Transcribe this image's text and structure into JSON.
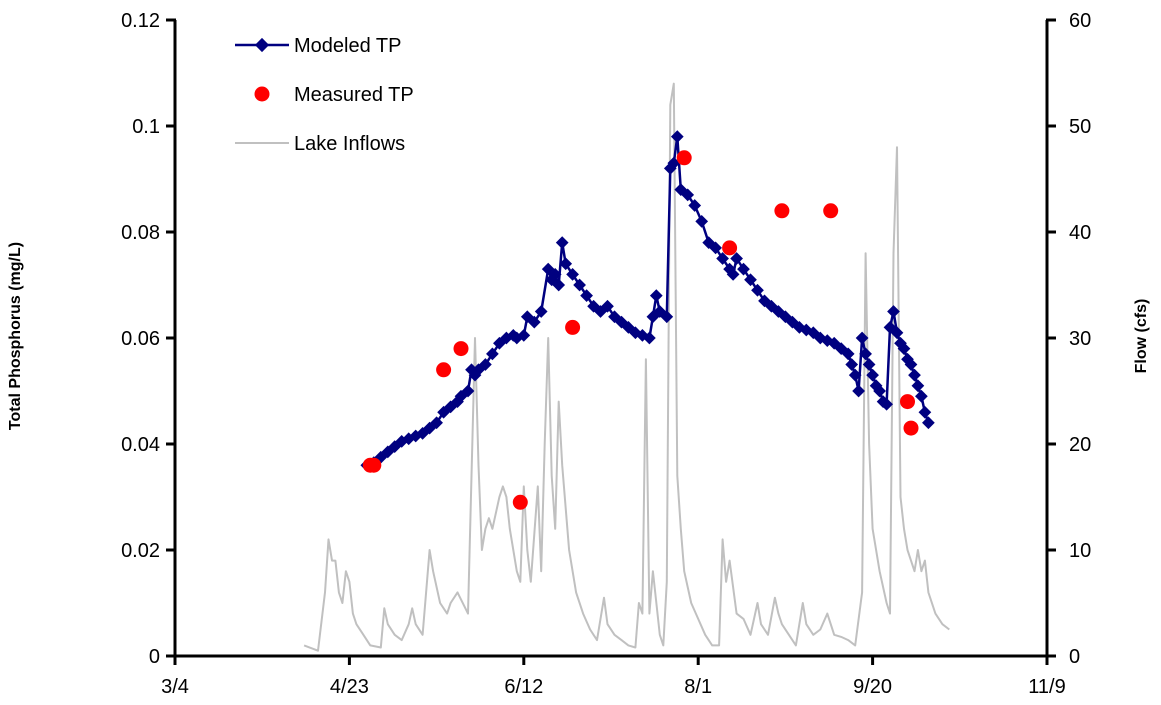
{
  "chart_data": {
    "type": "line",
    "title": "",
    "xlabel": "",
    "ylabel_left": "Total Phosphorus (mg/L)",
    "ylabel_right": "Flow (cfs)",
    "x_ticks": [
      "3/4",
      "4/23",
      "6/12",
      "8/1",
      "9/20",
      "11/9"
    ],
    "y_left_ticks": [
      "0",
      "0.02",
      "0.04",
      "0.06",
      "0.08",
      "0.1",
      "0.12"
    ],
    "y_right_ticks": [
      "0",
      "10",
      "20",
      "30",
      "40",
      "50",
      "60"
    ],
    "x_range": [
      "3/4",
      "11/9"
    ],
    "y_left_range": [
      0,
      0.12
    ],
    "y_right_range": [
      0,
      60
    ],
    "grid": false,
    "legend_position": "top-left",
    "colors": {
      "modeled": "#000080",
      "measured": "#ff0000",
      "inflows": "#c0c0c0"
    },
    "series": [
      {
        "name": "Modeled TP",
        "axis": "left",
        "style": "line-diamond",
        "points": [
          [
            "4/28",
            0.036
          ],
          [
            "4/30",
            0.0365
          ],
          [
            "5/2",
            0.0375
          ],
          [
            "5/4",
            0.0385
          ],
          [
            "5/6",
            0.0395
          ],
          [
            "5/8",
            0.0405
          ],
          [
            "5/10",
            0.041
          ],
          [
            "5/12",
            0.0415
          ],
          [
            "5/14",
            0.042
          ],
          [
            "5/16",
            0.043
          ],
          [
            "5/18",
            0.044
          ],
          [
            "5/20",
            0.046
          ],
          [
            "5/22",
            0.047
          ],
          [
            "5/24",
            0.048
          ],
          [
            "5/25",
            0.049
          ],
          [
            "5/27",
            0.05
          ],
          [
            "5/28",
            0.054
          ],
          [
            "5/29",
            0.053
          ],
          [
            "5/30",
            0.054
          ],
          [
            "6/1",
            0.055
          ],
          [
            "6/3",
            0.057
          ],
          [
            "6/5",
            0.059
          ],
          [
            "6/7",
            0.06
          ],
          [
            "6/9",
            0.0605
          ],
          [
            "6/10",
            0.06
          ],
          [
            "6/12",
            0.0605
          ],
          [
            "6/13",
            0.064
          ],
          [
            "6/15",
            0.063
          ],
          [
            "6/17",
            0.065
          ],
          [
            "6/19",
            0.073
          ],
          [
            "6/20",
            0.071
          ],
          [
            "6/21",
            0.072
          ],
          [
            "6/22",
            0.07
          ],
          [
            "6/23",
            0.078
          ],
          [
            "6/24",
            0.074
          ],
          [
            "6/26",
            0.072
          ],
          [
            "6/28",
            0.07
          ],
          [
            "6/30",
            0.068
          ],
          [
            "7/2",
            0.066
          ],
          [
            "7/4",
            0.065
          ],
          [
            "7/6",
            0.066
          ],
          [
            "7/8",
            0.064
          ],
          [
            "7/10",
            0.063
          ],
          [
            "7/12",
            0.062
          ],
          [
            "7/14",
            0.061
          ],
          [
            "7/16",
            0.0605
          ],
          [
            "7/18",
            0.06
          ],
          [
            "7/19",
            0.064
          ],
          [
            "7/20",
            0.068
          ],
          [
            "7/21",
            0.065
          ],
          [
            "7/23",
            0.064
          ],
          [
            "7/24",
            0.092
          ],
          [
            "7/25",
            0.093
          ],
          [
            "7/26",
            0.098
          ],
          [
            "7/27",
            0.088
          ],
          [
            "7/29",
            0.087
          ],
          [
            "7/31",
            0.085
          ],
          [
            "8/2",
            0.082
          ],
          [
            "8/4",
            0.078
          ],
          [
            "8/6",
            0.077
          ],
          [
            "8/8",
            0.075
          ],
          [
            "8/10",
            0.073
          ],
          [
            "8/11",
            0.072
          ],
          [
            "8/12",
            0.075
          ],
          [
            "8/14",
            0.073
          ],
          [
            "8/16",
            0.071
          ],
          [
            "8/18",
            0.069
          ],
          [
            "8/20",
            0.067
          ],
          [
            "8/22",
            0.066
          ],
          [
            "8/24",
            0.065
          ],
          [
            "8/26",
            0.064
          ],
          [
            "8/28",
            0.063
          ],
          [
            "8/30",
            0.062
          ],
          [
            "9/1",
            0.0615
          ],
          [
            "9/3",
            0.061
          ],
          [
            "9/5",
            0.06
          ],
          [
            "9/7",
            0.0595
          ],
          [
            "9/9",
            0.059
          ],
          [
            "9/11",
            0.058
          ],
          [
            "9/13",
            0.057
          ],
          [
            "9/14",
            0.055
          ],
          [
            "9/15",
            0.053
          ],
          [
            "9/16",
            0.05
          ],
          [
            "9/17",
            0.06
          ],
          [
            "9/18",
            0.057
          ],
          [
            "9/19",
            0.055
          ],
          [
            "9/20",
            0.053
          ],
          [
            "9/21",
            0.051
          ],
          [
            "9/22",
            0.05
          ],
          [
            "9/23",
            0.048
          ],
          [
            "9/24",
            0.0475
          ],
          [
            "9/25",
            0.062
          ],
          [
            "9/26",
            0.065
          ],
          [
            "9/27",
            0.061
          ],
          [
            "9/28",
            0.059
          ],
          [
            "9/29",
            0.058
          ],
          [
            "9/30",
            0.056
          ],
          [
            "10/1",
            0.055
          ],
          [
            "10/2",
            0.053
          ],
          [
            "10/3",
            0.051
          ],
          [
            "10/4",
            0.049
          ],
          [
            "10/5",
            0.046
          ],
          [
            "10/6",
            0.044
          ]
        ]
      },
      {
        "name": "Measured TP",
        "axis": "left",
        "style": "marker-circle",
        "points": [
          [
            "4/29",
            0.036
          ],
          [
            "4/30",
            0.036
          ],
          [
            "5/20",
            0.054
          ],
          [
            "5/25",
            0.058
          ],
          [
            "6/11",
            0.029
          ],
          [
            "6/26",
            0.062
          ],
          [
            "7/28",
            0.094
          ],
          [
            "8/10",
            0.077
          ],
          [
            "8/25",
            0.084
          ],
          [
            "9/8",
            0.084
          ],
          [
            "9/30",
            0.048
          ],
          [
            "10/1",
            0.043
          ]
        ]
      },
      {
        "name": "Lake Inflows",
        "axis": "right",
        "style": "line",
        "points": [
          [
            "4/10",
            1
          ],
          [
            "4/14",
            0.5
          ],
          [
            "4/16",
            6
          ],
          [
            "4/17",
            11
          ],
          [
            "4/18",
            9
          ],
          [
            "4/19",
            9
          ],
          [
            "4/20",
            6
          ],
          [
            "4/21",
            5
          ],
          [
            "4/22",
            8
          ],
          [
            "4/23",
            7
          ],
          [
            "4/24",
            4
          ],
          [
            "4/25",
            3
          ],
          [
            "4/27",
            2
          ],
          [
            "4/29",
            1
          ],
          [
            "5/2",
            0.8
          ],
          [
            "5/3",
            4.5
          ],
          [
            "5/4",
            3
          ],
          [
            "5/6",
            2
          ],
          [
            "5/8",
            1.5
          ],
          [
            "5/10",
            3
          ],
          [
            "5/11",
            4.5
          ],
          [
            "5/12",
            3
          ],
          [
            "5/14",
            2
          ],
          [
            "5/16",
            10
          ],
          [
            "5/17",
            8
          ],
          [
            "5/19",
            5
          ],
          [
            "5/21",
            4
          ],
          [
            "5/22",
            5
          ],
          [
            "5/24",
            6
          ],
          [
            "5/27",
            4
          ],
          [
            "5/29",
            30
          ],
          [
            "5/30",
            18
          ],
          [
            "5/31",
            10
          ],
          [
            "6/1",
            12
          ],
          [
            "6/2",
            13
          ],
          [
            "6/3",
            12
          ],
          [
            "6/5",
            15
          ],
          [
            "6/6",
            16
          ],
          [
            "6/7",
            15
          ],
          [
            "6/8",
            12
          ],
          [
            "6/10",
            8
          ],
          [
            "6/11",
            7
          ],
          [
            "6/12",
            16
          ],
          [
            "6/13",
            10
          ],
          [
            "6/14",
            7
          ],
          [
            "6/16",
            16
          ],
          [
            "6/17",
            8
          ],
          [
            "6/18",
            20
          ],
          [
            "6/19",
            30
          ],
          [
            "6/20",
            17
          ],
          [
            "6/21",
            12
          ],
          [
            "6/22",
            24
          ],
          [
            "6/23",
            18
          ],
          [
            "6/25",
            10
          ],
          [
            "6/27",
            6
          ],
          [
            "6/29",
            4
          ],
          [
            "7/1",
            2.5
          ],
          [
            "7/3",
            1.5
          ],
          [
            "7/5",
            5.5
          ],
          [
            "7/6",
            3
          ],
          [
            "7/8",
            2
          ],
          [
            "7/10",
            1.5
          ],
          [
            "7/12",
            1
          ],
          [
            "7/14",
            0.8
          ],
          [
            "7/15",
            5
          ],
          [
            "7/16",
            4
          ],
          [
            "7/17",
            28
          ],
          [
            "7/18",
            4
          ],
          [
            "7/19",
            8
          ],
          [
            "7/21",
            2
          ],
          [
            "7/22",
            1
          ],
          [
            "7/23",
            7
          ],
          [
            "7/24",
            52
          ],
          [
            "7/25",
            54
          ],
          [
            "7/26",
            17
          ],
          [
            "7/27",
            12
          ],
          [
            "7/28",
            8
          ],
          [
            "7/30",
            5
          ],
          [
            "8/1",
            3.5
          ],
          [
            "8/3",
            2
          ],
          [
            "8/5",
            1
          ],
          [
            "8/7",
            1
          ],
          [
            "8/8",
            11
          ],
          [
            "8/9",
            7
          ],
          [
            "8/10",
            9
          ],
          [
            "8/12",
            4
          ],
          [
            "8/14",
            3.5
          ],
          [
            "8/16",
            2
          ],
          [
            "8/18",
            5
          ],
          [
            "8/19",
            3
          ],
          [
            "8/21",
            2
          ],
          [
            "8/23",
            5.5
          ],
          [
            "8/24",
            4
          ],
          [
            "8/25",
            3
          ],
          [
            "8/27",
            2
          ],
          [
            "8/29",
            1
          ],
          [
            "8/31",
            5
          ],
          [
            "9/1",
            3
          ],
          [
            "9/3",
            2
          ],
          [
            "9/5",
            2.5
          ],
          [
            "9/7",
            4
          ],
          [
            "9/9",
            2
          ],
          [
            "9/11",
            1.8
          ],
          [
            "9/13",
            1.5
          ],
          [
            "9/15",
            1
          ],
          [
            "9/17",
            6
          ],
          [
            "9/18",
            38
          ],
          [
            "9/19",
            20
          ],
          [
            "9/20",
            12
          ],
          [
            "9/22",
            8
          ],
          [
            "9/24",
            5
          ],
          [
            "9/25",
            4
          ],
          [
            "9/26",
            38
          ],
          [
            "9/27",
            48
          ],
          [
            "9/28",
            15
          ],
          [
            "9/29",
            12
          ],
          [
            "9/30",
            10
          ],
          [
            "10/2",
            8
          ],
          [
            "10/3",
            10
          ],
          [
            "10/4",
            8
          ],
          [
            "10/5",
            9
          ],
          [
            "10/6",
            6
          ],
          [
            "10/8",
            4
          ],
          [
            "10/10",
            3
          ],
          [
            "10/12",
            2.5
          ]
        ]
      }
    ]
  }
}
